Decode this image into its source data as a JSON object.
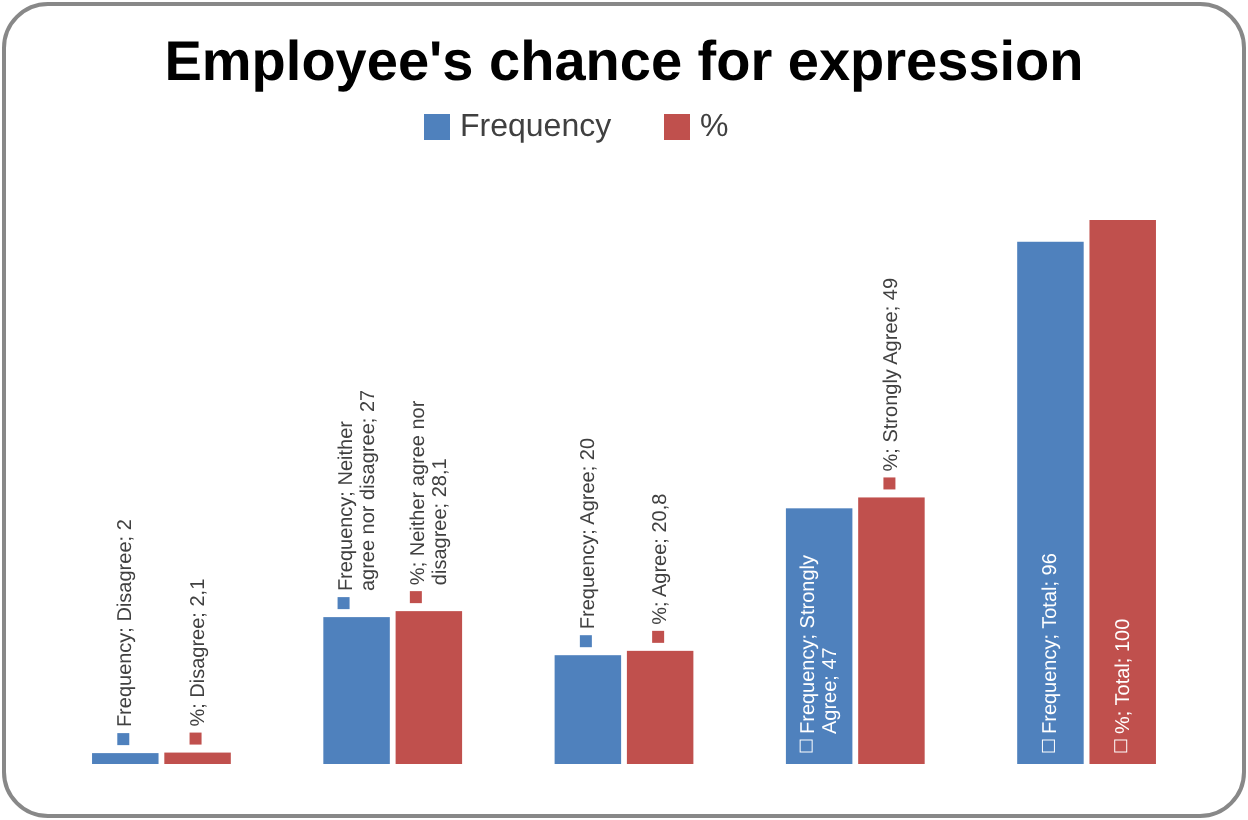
{
  "chart_data": {
    "type": "bar",
    "title": "Employee's chance for expression",
    "categories": [
      null,
      null,
      null,
      null,
      null
    ],
    "series": [
      {
        "name": "Frequency",
        "color": "#4f81bd",
        "values": [
          2,
          27,
          20,
          47,
          96
        ],
        "value_labels": [
          "Frequency; Disagree; 2",
          "Frequency; Neither agree nor disagree; 27",
          "Frequency; Agree; 20",
          "Frequency; Strongly Agree; 47",
          "Frequency; Total; 96"
        ]
      },
      {
        "name": "%",
        "color": "#c0504d",
        "values": [
          2.1,
          28.1,
          20.8,
          49,
          100
        ],
        "value_labels": [
          "%; Disagree; 2,1",
          "%; Neither agree nor disagree; 28,1",
          "%; Agree; 20,8",
          "%; Strongly Agree; 49",
          "%; Total; 100"
        ]
      }
    ],
    "legend": "top"
  }
}
